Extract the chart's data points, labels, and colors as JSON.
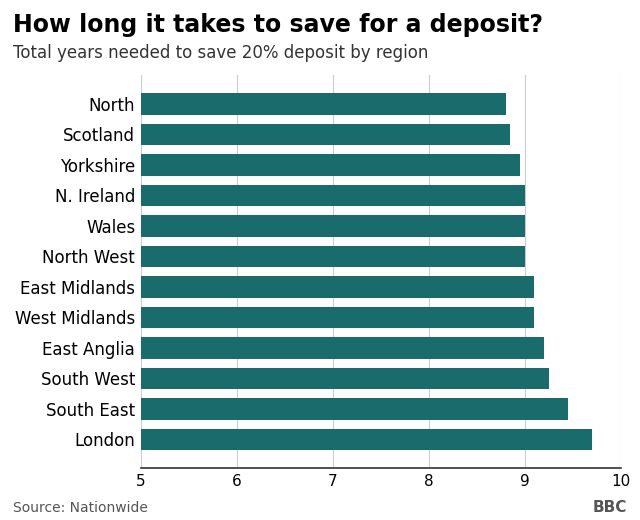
{
  "title": "How long it takes to save for a deposit?",
  "subtitle": "Total years needed to save 20% deposit by region",
  "source": "Source: Nationwide",
  "bbc_label": "BBC",
  "regions": [
    "North",
    "Scotland",
    "Yorkshire",
    "N. Ireland",
    "Wales",
    "North West",
    "East Midlands",
    "West Midlands",
    "East Anglia",
    "South West",
    "South East",
    "London"
  ],
  "values": [
    8.8,
    8.85,
    8.95,
    9.0,
    9.0,
    9.0,
    9.1,
    9.1,
    9.2,
    9.25,
    9.45,
    9.7
  ],
  "bar_color": "#1a6b6b",
  "xlim": [
    5,
    10
  ],
  "xticks": [
    5,
    6,
    7,
    8,
    9,
    10
  ],
  "background_color": "#ffffff",
  "title_fontsize": 17,
  "subtitle_fontsize": 12,
  "tick_fontsize": 11,
  "label_fontsize": 12,
  "source_fontsize": 10
}
